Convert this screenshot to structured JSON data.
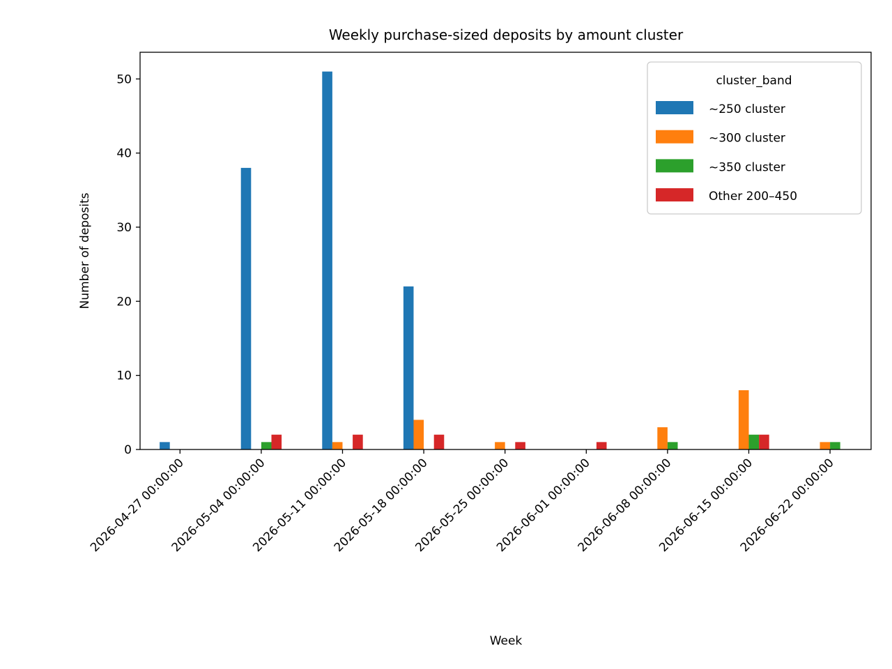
{
  "chart_data": {
    "type": "bar",
    "title": "Weekly purchase-sized deposits by amount cluster",
    "xlabel": "Week",
    "ylabel": "Number of deposits",
    "ylim": [
      0,
      53.6
    ],
    "yticks": [
      0,
      10,
      20,
      30,
      40,
      50
    ],
    "grid": false,
    "legend": {
      "title": "cluster_band",
      "placement": "top-right"
    },
    "categories": [
      "2026-04-27 00:00:00",
      "2026-05-04 00:00:00",
      "2026-05-11 00:00:00",
      "2026-05-18 00:00:00",
      "2026-05-25 00:00:00",
      "2026-06-01 00:00:00",
      "2026-06-08 00:00:00",
      "2026-06-15 00:00:00",
      "2026-06-22 00:00:00"
    ],
    "series": [
      {
        "name": "~250 cluster",
        "color": "#1f77b4",
        "values": [
          1,
          38,
          51,
          22,
          0,
          0,
          0,
          0,
          0
        ]
      },
      {
        "name": "~300 cluster",
        "color": "#ff7f0e",
        "values": [
          0,
          0,
          1,
          4,
          1,
          0,
          3,
          8,
          1
        ]
      },
      {
        "name": "~350 cluster",
        "color": "#2ca02c",
        "values": [
          0,
          1,
          0,
          0,
          0,
          0,
          1,
          2,
          1
        ]
      },
      {
        "name": "Other 200–450",
        "color": "#d62728",
        "values": [
          0,
          2,
          2,
          2,
          1,
          1,
          0,
          2,
          0
        ]
      }
    ]
  }
}
